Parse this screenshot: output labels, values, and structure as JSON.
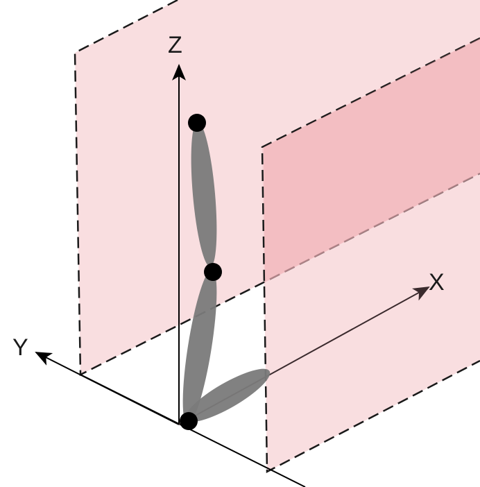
{
  "axes": {
    "x_label": "X",
    "y_label": "Y",
    "z_label": "Z"
  },
  "colors": {
    "plane_fill": "#f4c2c6",
    "plane_shadow": "#ee9fa5",
    "plane_stroke": "#1a1a1a",
    "axis_stroke": "#000000",
    "x_axis_stroke": "#3a2a2d",
    "segment_fill": "#7a7a7a",
    "joint_fill": "#000000",
    "background": "#ffffff"
  }
}
